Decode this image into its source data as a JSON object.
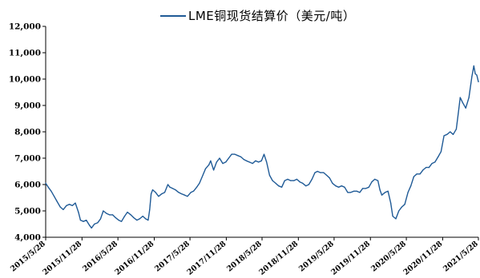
{
  "chart_data": {
    "type": "line",
    "title": "",
    "xlabel": "",
    "ylabel": "",
    "legend": {
      "position": "top-center"
    },
    "grid": false,
    "colors": {
      "series": "#1f5a96",
      "axis": "#000000"
    },
    "ylim": [
      4000,
      12000
    ],
    "yticks": [
      4000,
      5000,
      6000,
      7000,
      8000,
      9000,
      10000,
      11000,
      12000
    ],
    "ytick_labels": [
      "4,000",
      "5,000",
      "6,000",
      "7,000",
      "8,000",
      "9,000",
      "10,000",
      "11,000",
      "12,000"
    ],
    "xlim": [
      "2015-05-28",
      "2021-05-28"
    ],
    "xticks": [
      "2015-05-28",
      "2015-11-28",
      "2016-05-28",
      "2016-11-28",
      "2017-05-28",
      "2017-11-28",
      "2018-05-28",
      "2018-11-28",
      "2019-05-28",
      "2019-11-28",
      "2020-05-28",
      "2020-11-28",
      "2021-05-28"
    ],
    "xtick_labels": [
      "2015/5/28",
      "2015/11/28",
      "2016/5/28",
      "2016/11/28",
      "2017/5/28",
      "2017/11/28",
      "2018/5/28",
      "2018/11/28",
      "2019/5/28",
      "2019/11/28",
      "2020/5/28",
      "2020/11/28",
      "2021/5/28"
    ],
    "series": [
      {
        "name": "LME铜现货结算价（美元/吨）",
        "x": [
          "2015-05-28",
          "2015-06-10",
          "2015-06-25",
          "2015-07-10",
          "2015-07-25",
          "2015-08-10",
          "2015-08-25",
          "2015-09-10",
          "2015-09-25",
          "2015-10-10",
          "2015-10-25",
          "2015-11-10",
          "2015-11-20",
          "2015-12-05",
          "2015-12-20",
          "2016-01-05",
          "2016-01-15",
          "2016-01-30",
          "2016-02-15",
          "2016-03-01",
          "2016-03-15",
          "2016-04-01",
          "2016-04-15",
          "2016-05-01",
          "2016-05-15",
          "2016-06-01",
          "2016-06-15",
          "2016-07-01",
          "2016-07-15",
          "2016-08-01",
          "2016-08-15",
          "2016-09-01",
          "2016-09-15",
          "2016-10-01",
          "2016-10-15",
          "2016-10-28",
          "2016-11-05",
          "2016-11-12",
          "2016-11-20",
          "2016-12-05",
          "2016-12-20",
          "2017-01-05",
          "2017-01-20",
          "2017-02-05",
          "2017-02-15",
          "2017-03-01",
          "2017-03-15",
          "2017-04-01",
          "2017-04-15",
          "2017-05-01",
          "2017-05-15",
          "2017-06-01",
          "2017-06-15",
          "2017-07-01",
          "2017-07-15",
          "2017-08-01",
          "2017-08-15",
          "2017-09-01",
          "2017-09-10",
          "2017-09-25",
          "2017-10-10",
          "2017-10-25",
          "2017-11-10",
          "2017-11-25",
          "2017-12-10",
          "2017-12-25",
          "2018-01-10",
          "2018-01-25",
          "2018-02-10",
          "2018-02-25",
          "2018-03-10",
          "2018-03-25",
          "2018-04-10",
          "2018-04-25",
          "2018-05-10",
          "2018-05-25",
          "2018-06-07",
          "2018-06-20",
          "2018-07-05",
          "2018-07-20",
          "2018-08-05",
          "2018-08-20",
          "2018-09-05",
          "2018-09-20",
          "2018-10-05",
          "2018-10-20",
          "2018-11-05",
          "2018-11-20",
          "2018-12-05",
          "2018-12-20",
          "2019-01-05",
          "2019-01-20",
          "2019-02-05",
          "2019-02-20",
          "2019-03-05",
          "2019-03-20",
          "2019-04-05",
          "2019-04-20",
          "2019-05-05",
          "2019-05-20",
          "2019-06-05",
          "2019-06-20",
          "2019-07-05",
          "2019-07-20",
          "2019-08-05",
          "2019-08-20",
          "2019-09-05",
          "2019-09-20",
          "2019-10-05",
          "2019-10-20",
          "2019-11-05",
          "2019-11-20",
          "2019-12-05",
          "2019-12-20",
          "2020-01-05",
          "2020-01-15",
          "2020-01-25",
          "2020-02-10",
          "2020-02-25",
          "2020-03-10",
          "2020-03-20",
          "2020-04-05",
          "2020-04-20",
          "2020-05-05",
          "2020-05-20",
          "2020-06-05",
          "2020-06-20",
          "2020-07-05",
          "2020-07-20",
          "2020-08-05",
          "2020-08-20",
          "2020-09-05",
          "2020-09-20",
          "2020-10-05",
          "2020-10-20",
          "2020-11-05",
          "2020-11-20",
          "2020-12-05",
          "2020-12-20",
          "2021-01-05",
          "2021-01-20",
          "2021-02-05",
          "2021-02-15",
          "2021-02-25",
          "2021-03-10",
          "2021-03-25",
          "2021-04-10",
          "2021-04-25",
          "2021-05-05",
          "2021-05-12",
          "2021-05-20",
          "2021-05-28"
        ],
        "y": [
          6050,
          5900,
          5750,
          5550,
          5350,
          5150,
          5050,
          5200,
          5250,
          5200,
          5300,
          4950,
          4650,
          4600,
          4650,
          4450,
          4350,
          4500,
          4550,
          4700,
          5000,
          4900,
          4850,
          4850,
          4750,
          4650,
          4600,
          4800,
          4950,
          4850,
          4750,
          4650,
          4700,
          4800,
          4700,
          4650,
          5050,
          5650,
          5800,
          5700,
          5550,
          5650,
          5700,
          6000,
          5900,
          5850,
          5800,
          5700,
          5650,
          5600,
          5550,
          5700,
          5750,
          5900,
          6050,
          6350,
          6600,
          6750,
          6900,
          6550,
          6850,
          7000,
          6800,
          6850,
          7000,
          7150,
          7150,
          7100,
          7050,
          6950,
          6900,
          6850,
          6800,
          6900,
          6850,
          6900,
          7150,
          6850,
          6350,
          6150,
          6050,
          5950,
          5900,
          6150,
          6200,
          6150,
          6150,
          6200,
          6100,
          6050,
          5950,
          6000,
          6200,
          6450,
          6500,
          6450,
          6450,
          6350,
          6250,
          6050,
          5950,
          5900,
          5950,
          5900,
          5700,
          5700,
          5750,
          5750,
          5700,
          5850,
          5850,
          5900,
          6100,
          6200,
          6150,
          5800,
          5600,
          5700,
          5750,
          5300,
          4800,
          4700,
          5000,
          5150,
          5250,
          5700,
          5950,
          6300,
          6400,
          6400,
          6550,
          6650,
          6650,
          6800,
          6850,
          7050,
          7250,
          7850,
          7900,
          8000,
          7900,
          8100,
          8700,
          9300,
          9100,
          8900,
          9300,
          10100,
          10500,
          10200,
          10150,
          9900
        ]
      }
    ]
  }
}
